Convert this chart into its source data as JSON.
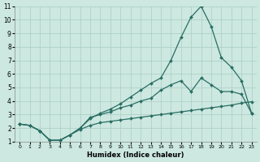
{
  "xlabel": "Humidex (Indice chaleur)",
  "xlim": [
    -0.5,
    23.5
  ],
  "ylim": [
    1,
    11
  ],
  "xticks": [
    0,
    1,
    2,
    3,
    4,
    5,
    6,
    7,
    8,
    9,
    10,
    11,
    12,
    13,
    14,
    15,
    16,
    17,
    18,
    19,
    20,
    21,
    22,
    23
  ],
  "yticks": [
    1,
    2,
    3,
    4,
    5,
    6,
    7,
    8,
    9,
    10,
    11
  ],
  "bg_color": "#cce8e0",
  "grid_color": "#aaccc4",
  "line_color": "#2a6e64",
  "line1_x": [
    0,
    1,
    2,
    3,
    4,
    5,
    6,
    7,
    8,
    9,
    10,
    11,
    12,
    13,
    14,
    15,
    16,
    17,
    18,
    19,
    20,
    21,
    22,
    23
  ],
  "line1_y": [
    2.3,
    2.2,
    1.8,
    1.1,
    1.1,
    1.5,
    2.0,
    2.7,
    3.1,
    3.4,
    3.8,
    4.3,
    4.8,
    5.3,
    5.7,
    7.0,
    8.7,
    10.2,
    11.0,
    9.5,
    7.2,
    6.5,
    5.5,
    3.1
  ],
  "line2_x": [
    0,
    1,
    2,
    3,
    4,
    5,
    6,
    7,
    8,
    9,
    10,
    11,
    12,
    13,
    14,
    15,
    16,
    17,
    18,
    19,
    20,
    21,
    22,
    23
  ],
  "line2_y": [
    2.3,
    2.2,
    1.8,
    1.1,
    1.1,
    1.5,
    2.0,
    2.8,
    3.0,
    3.2,
    3.5,
    3.7,
    4.0,
    4.2,
    4.8,
    5.2,
    5.5,
    4.7,
    5.7,
    5.2,
    4.7,
    4.7,
    4.5,
    3.1
  ],
  "line3_x": [
    0,
    1,
    2,
    3,
    4,
    5,
    6,
    7,
    8,
    9,
    10,
    11,
    12,
    13,
    14,
    15,
    16,
    17,
    18,
    19,
    20,
    21,
    22,
    23
  ],
  "line3_y": [
    2.3,
    2.2,
    1.8,
    1.1,
    1.1,
    1.5,
    1.9,
    2.2,
    2.4,
    2.5,
    2.6,
    2.7,
    2.8,
    2.9,
    3.0,
    3.1,
    3.2,
    3.3,
    3.4,
    3.5,
    3.6,
    3.7,
    3.85,
    3.95
  ],
  "marker": "D",
  "markersize": 2.0,
  "linewidth": 0.9
}
